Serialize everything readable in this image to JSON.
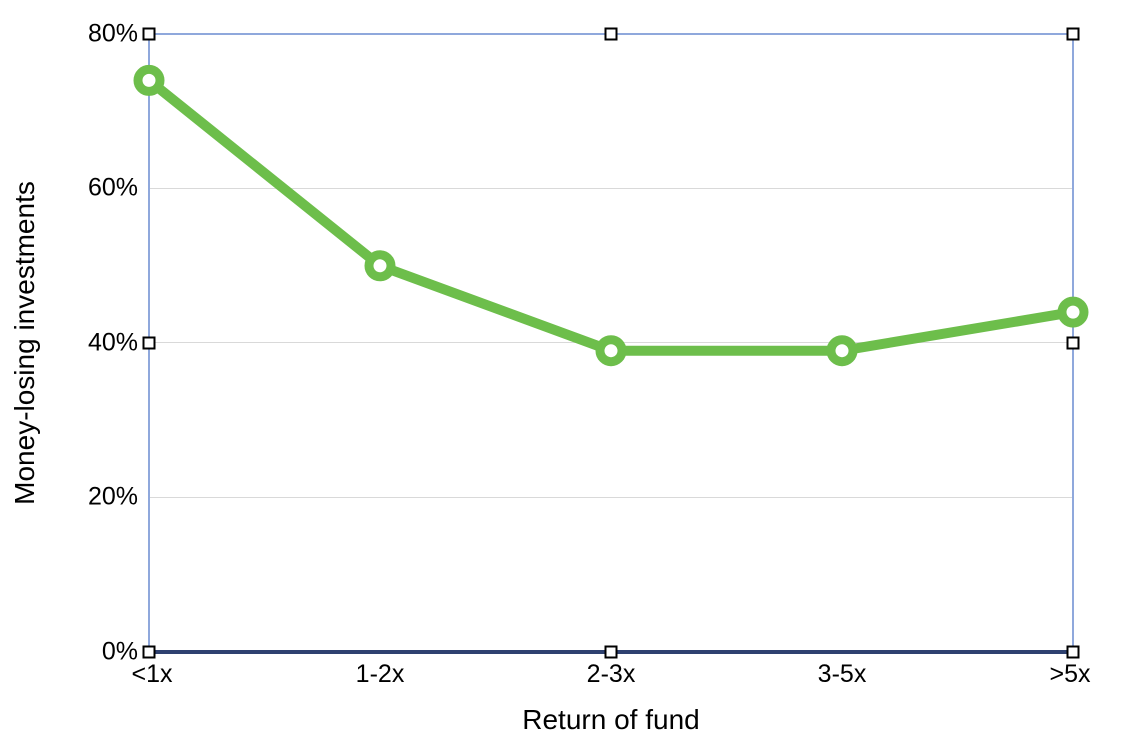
{
  "chart_data": {
    "type": "line",
    "title": "",
    "categories": [
      "<1x",
      "1-2x",
      "2-3x",
      "3-5x",
      ">5x"
    ],
    "series": [
      {
        "name": "Money-losing investments",
        "values": [
          74,
          50,
          39,
          39,
          44
        ],
        "unit": "%"
      }
    ],
    "xlabel": "Return of fund",
    "ylabel": "Money-losing investments",
    "ylim": [
      0,
      80
    ],
    "y_ticks": [
      "0%",
      "20%",
      "40%",
      "60%",
      "80%"
    ],
    "grid": "horizontal-light",
    "legend": "none",
    "marker_style": "open-circle",
    "line_width": 10,
    "colors": {
      "line": "#6dbe4b",
      "plot_border": "#8fa8dc",
      "x_axis": "#2e4170",
      "gridline": "#d9d9d9",
      "text": "#000000",
      "handle_fill": "#ffffff",
      "handle_border": "#000000"
    }
  },
  "selection": {
    "selected": true,
    "handle_count": 8
  }
}
